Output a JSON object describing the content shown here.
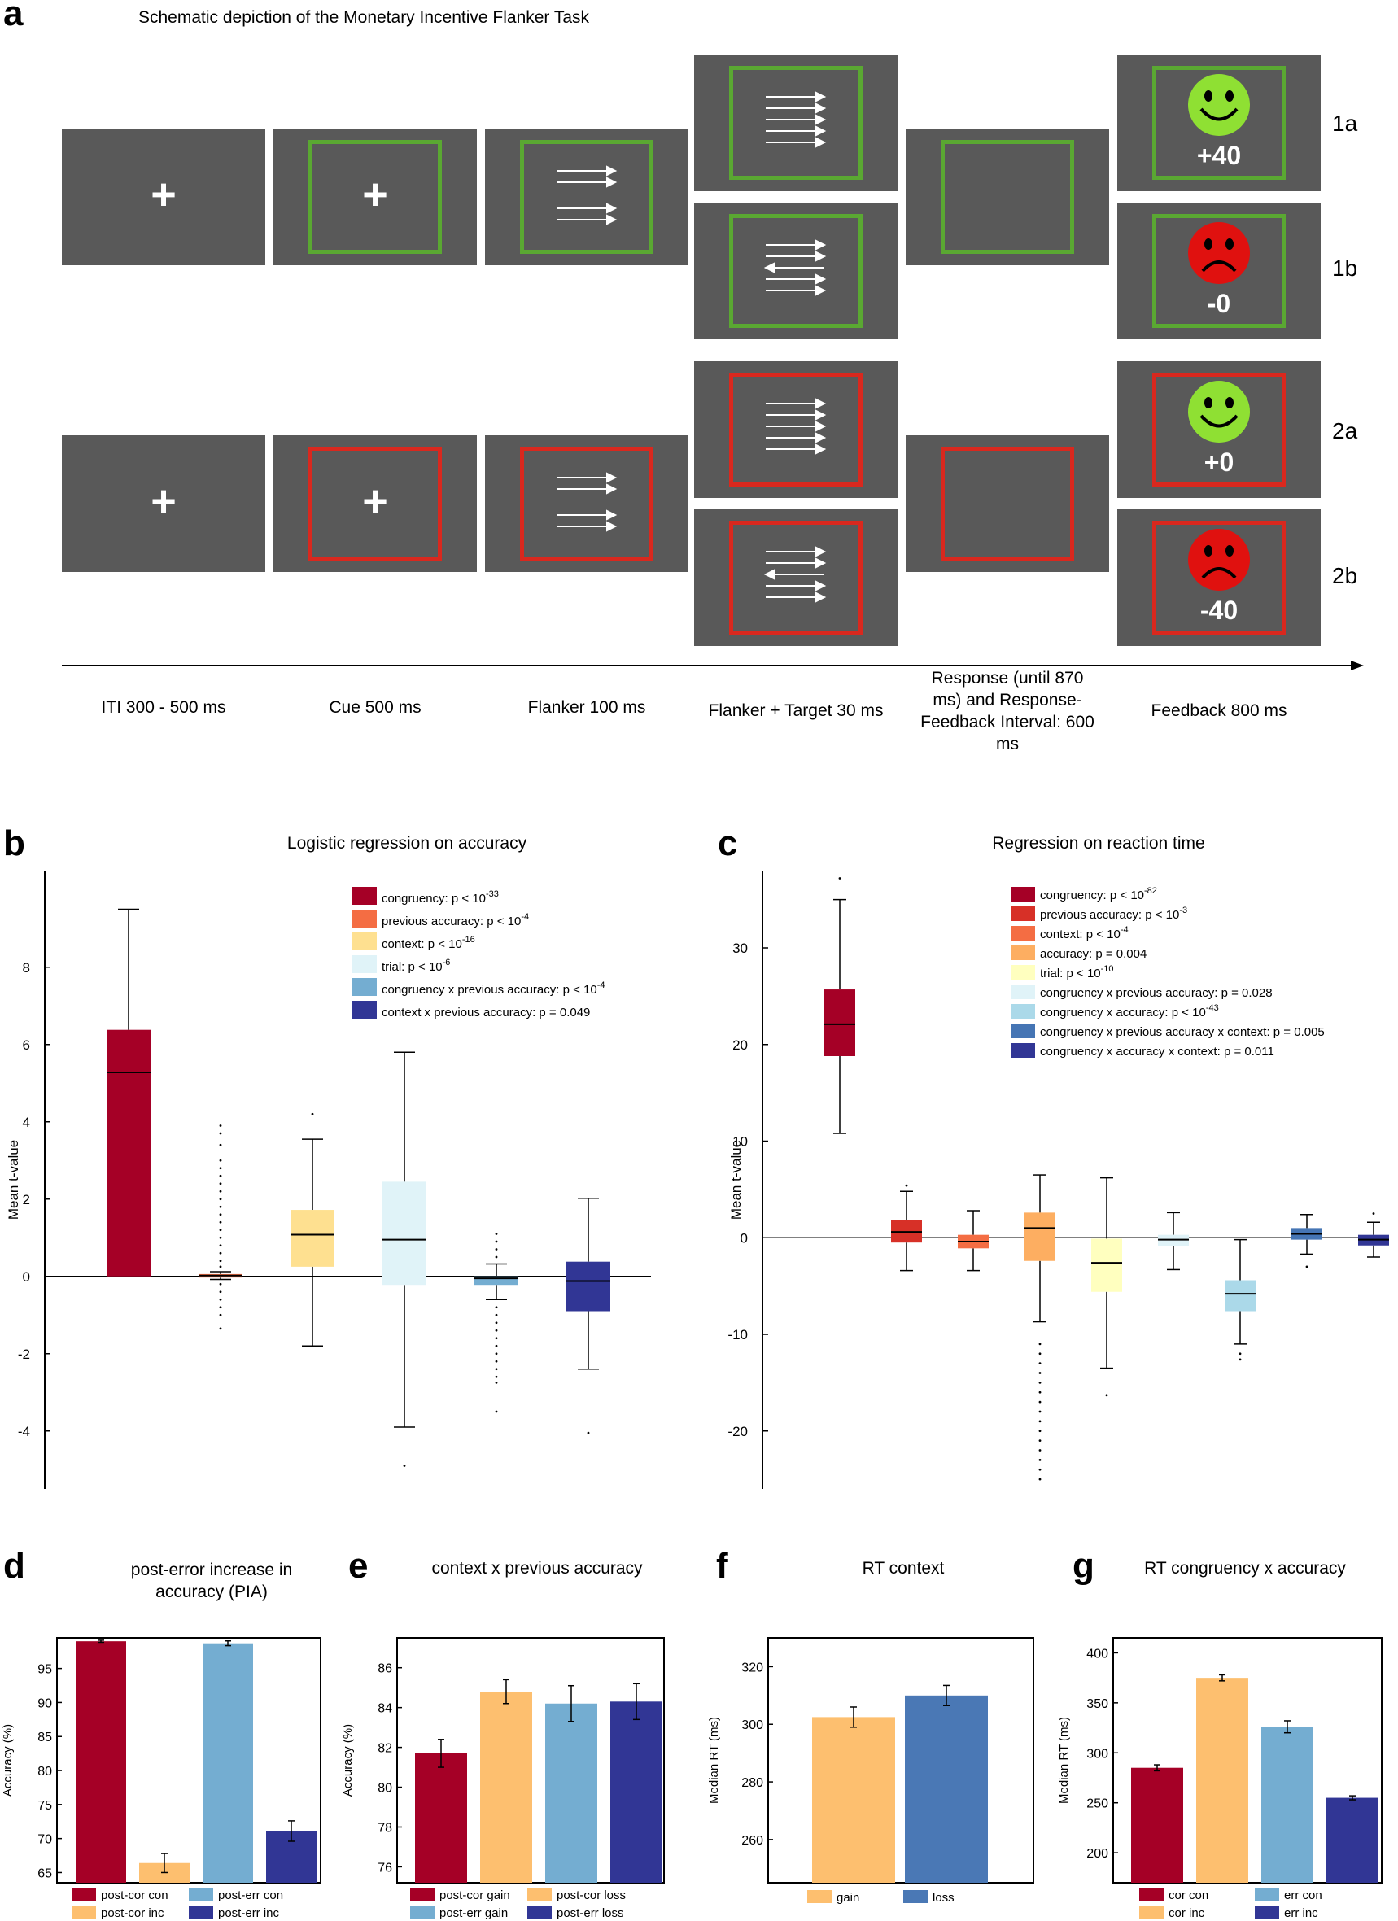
{
  "panel_a": {
    "letter": "a",
    "title": "Schematic depiction of the Monetary Incentive Flanker Task",
    "row_labels": [
      "1a",
      "1b",
      "2a",
      "2b"
    ],
    "feedback": [
      "+40",
      "-0",
      "+0",
      "-40"
    ],
    "phases": [
      "ITI 300 - 500 ms",
      "Cue 500 ms",
      "Flanker 100 ms",
      "Flanker + Target 30 ms",
      "Response (until 870 ms) and Response-Feedback Interval: 600 ms",
      "Feedback 800 ms"
    ],
    "colors": {
      "screen": "#595959",
      "gain_frame": "#5aa832",
      "loss_frame": "#d9281e",
      "happy_face": "#8fe033",
      "sad_face": "#e0110f"
    }
  },
  "panel_b": {
    "letter": "b",
    "chart_data": {
      "type": "box",
      "title": "Logistic regression on accuracy",
      "ylabel": "Mean t-value",
      "ylim": [
        -5.5,
        10.5
      ],
      "yticks": [
        -4,
        -2,
        0,
        2,
        4,
        6,
        8
      ],
      "legend": [
        {
          "label": "congruency:  p < 10",
          "sup": "-33",
          "color": "#a50026"
        },
        {
          "label": "previous accuracy:  p < 10",
          "sup": "-4",
          "color": "#f46d43"
        },
        {
          "label": "context:  p < 10",
          "sup": "-16",
          "color": "#fee090"
        },
        {
          "label": "trial:  p < 10",
          "sup": "-6",
          "color": "#e0f3f8"
        },
        {
          "label": "congruency x previous accuracy:  p < 10",
          "sup": "-4",
          "color": "#74add1"
        },
        {
          "label": "context x previous accuracy:  p = 0.049",
          "sup": "",
          "color": "#313695"
        }
      ],
      "boxes": [
        {
          "q1": 0,
          "median": 5.28,
          "q3": 6.38,
          "lo": 0,
          "hi": 9.5,
          "outliers": []
        },
        {
          "q1": -0.03,
          "median": 0.02,
          "q3": 0.06,
          "lo": -0.08,
          "hi": 0.12,
          "outliers": [
            3.9,
            3.7,
            3.4,
            3.0,
            2.8,
            2.6,
            2.4,
            2.2,
            2.0,
            1.8,
            1.6,
            1.4,
            1.2,
            1.0,
            0.8,
            0.6,
            0.4,
            0.25,
            -0.2,
            -0.4,
            -0.6,
            -0.8,
            -1.0,
            -1.35
          ]
        },
        {
          "q1": 0.25,
          "median": 1.08,
          "q3": 1.72,
          "lo": -1.8,
          "hi": 3.55,
          "outliers": [
            4.2
          ]
        },
        {
          "q1": -0.22,
          "median": 0.95,
          "q3": 2.45,
          "lo": -3.9,
          "hi": 5.8,
          "outliers": [
            -4.9
          ]
        },
        {
          "q1": -0.22,
          "median": -0.05,
          "q3": 0.0,
          "lo": -0.6,
          "hi": 0.32,
          "outliers": [
            1.1,
            0.9,
            0.7,
            0.5,
            -0.8,
            -1.0,
            -1.2,
            -1.4,
            -1.6,
            -1.8,
            -2.0,
            -2.2,
            -2.4,
            -2.6,
            -2.75,
            -3.5
          ]
        },
        {
          "q1": -0.9,
          "median": -0.12,
          "q3": 0.38,
          "lo": -2.4,
          "hi": 2.02,
          "outliers": [
            -4.05
          ]
        }
      ]
    }
  },
  "panel_c": {
    "letter": "c",
    "chart_data": {
      "type": "box",
      "title": "Regression on reaction time",
      "ylabel": "Mean  t-value",
      "ylim": [
        -26,
        38
      ],
      "yticks": [
        -20,
        -10,
        0,
        10,
        20,
        30
      ],
      "legend": [
        {
          "label": "congruency:  p < 10",
          "sup": "-82",
          "color": "#a50026"
        },
        {
          "label": "previous accuracy:  p < 10",
          "sup": "-3",
          "color": "#d73027"
        },
        {
          "label": "context:  p < 10",
          "sup": "-4",
          "color": "#f46d43"
        },
        {
          "label": "accuracy:  p = 0.004",
          "sup": "",
          "color": "#fdae61"
        },
        {
          "label": "trial:  p < 10",
          "sup": "-10",
          "color": "#ffffbf"
        },
        {
          "label": "congruency x previous accuracy:  p = 0.028",
          "sup": "",
          "color": "#e0f3f8"
        },
        {
          "label": "congruency x accuracy:  p < 10",
          "sup": "-43",
          "color": "#abd9e9"
        },
        {
          "label": "congruency x previous accuracy x context:  p = 0.005",
          "sup": "",
          "color": "#4575b4"
        },
        {
          "label": "congruency x accuracy x context:  p = 0.011",
          "sup": "",
          "color": "#313695"
        }
      ],
      "boxes": [
        {
          "q1": 18.8,
          "median": 22.1,
          "q3": 25.7,
          "lo": 10.8,
          "hi": 35.0,
          "outliers": [
            37.2
          ]
        },
        {
          "q1": -0.5,
          "median": 0.6,
          "q3": 1.8,
          "lo": -3.4,
          "hi": 4.8,
          "outliers": [
            5.4
          ]
        },
        {
          "q1": -1.1,
          "median": -0.4,
          "q3": 0.3,
          "lo": -3.4,
          "hi": 2.8,
          "outliers": []
        },
        {
          "q1": -2.4,
          "median": 1.0,
          "q3": 2.6,
          "lo": -8.7,
          "hi": 6.5,
          "outliers": [
            -11,
            -12,
            -13,
            -14,
            -15,
            -16,
            -17,
            -18,
            -19,
            -20,
            -21,
            -22,
            -23,
            -24,
            -25
          ]
        },
        {
          "q1": -5.6,
          "median": -2.6,
          "q3": -0.1,
          "lo": -13.5,
          "hi": 6.2,
          "outliers": [
            -16.3
          ]
        },
        {
          "q1": -0.9,
          "median": -0.2,
          "q3": 0.3,
          "lo": -3.3,
          "hi": 2.6,
          "outliers": []
        },
        {
          "q1": -7.6,
          "median": -5.8,
          "q3": -4.4,
          "lo": -11.0,
          "hi": -0.2,
          "outliers": [
            -12.0,
            -12.6
          ]
        },
        {
          "q1": -0.2,
          "median": 0.4,
          "q3": 1.0,
          "lo": -1.7,
          "hi": 2.4,
          "outliers": [
            -3.0
          ]
        },
        {
          "q1": -0.8,
          "median": -0.2,
          "q3": 0.3,
          "lo": -2.0,
          "hi": 1.6,
          "outliers": [
            2.5
          ]
        }
      ]
    }
  },
  "panel_d": {
    "letter": "d",
    "chart_data": {
      "type": "bar",
      "title": [
        "post-error increase in",
        "accuracy (PIA)"
      ],
      "ylabel": "Accuracy (%)",
      "ylim": [
        63.5,
        99.5
      ],
      "yticks": [
        65,
        70,
        75,
        80,
        85,
        90,
        95
      ],
      "categories": [
        "post-cor con",
        "post-cor inc",
        "post-err con",
        "post-err inc"
      ],
      "values": [
        99.0,
        66.4,
        98.7,
        71.1
      ],
      "errors": [
        0.15,
        1.4,
        0.35,
        1.5
      ],
      "colors": [
        "#a50026",
        "#fdbf6f",
        "#74add1",
        "#313695"
      ]
    }
  },
  "panel_e": {
    "letter": "e",
    "chart_data": {
      "type": "bar",
      "title": [
        "context x previous accuracy"
      ],
      "ylabel": "Accuracy (%)",
      "ylim": [
        75.2,
        87.5
      ],
      "yticks": [
        76,
        78,
        80,
        82,
        84,
        86
      ],
      "categories": [
        "post-cor gain",
        "post-cor loss",
        "post-err gain",
        "post-err loss"
      ],
      "values": [
        81.7,
        84.8,
        84.2,
        84.3
      ],
      "errors": [
        0.7,
        0.6,
        0.9,
        0.9
      ],
      "colors": [
        "#a50026",
        "#fdbf6f",
        "#74add1",
        "#313695"
      ]
    }
  },
  "panel_f": {
    "letter": "f",
    "chart_data": {
      "type": "bar",
      "title": [
        "RT context"
      ],
      "ylabel": "Median RT (ms)",
      "ylim": [
        245,
        330
      ],
      "yticks": [
        260,
        280,
        300,
        320
      ],
      "categories": [
        "gain",
        "loss"
      ],
      "values": [
        302.5,
        310.0
      ],
      "errors": [
        3.5,
        3.5
      ],
      "colors": [
        "#fdbf6f",
        "#4a78b5"
      ]
    }
  },
  "panel_g": {
    "letter": "g",
    "chart_data": {
      "type": "bar",
      "title": [
        "RT congruency x accuracy"
      ],
      "ylabel": "Median RT (ms)",
      "ylim": [
        170,
        415
      ],
      "yticks": [
        200,
        250,
        300,
        350,
        400
      ],
      "categories": [
        "cor con",
        "cor inc",
        "err con",
        "err inc"
      ],
      "values": [
        285,
        375,
        326,
        255
      ],
      "errors": [
        3,
        3,
        6,
        2
      ],
      "colors": [
        "#a50026",
        "#fdbf6f",
        "#74add1",
        "#313695"
      ]
    }
  }
}
